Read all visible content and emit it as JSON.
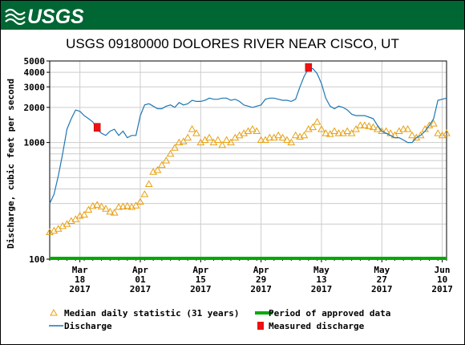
{
  "header": {
    "logo_text": "USGS",
    "brand_color": "#006633"
  },
  "chart_data": {
    "type": "line",
    "title": "USGS 09180000 DOLORES RIVER NEAR CISCO, UT",
    "ylabel": "Discharge, cubic feet per second",
    "xlabel": "",
    "y_scale": "log",
    "ylim": [
      100,
      5000
    ],
    "y_ticks": [
      100,
      1000,
      2000,
      3000,
      4000,
      5000
    ],
    "x_range": [
      "2017-03-11",
      "2017-06-11"
    ],
    "grid": true,
    "legend_position": "bottom",
    "x_ticks": [
      {
        "date": "2017-03-18",
        "label1": "Mar",
        "label2": "18",
        "label3": "2017"
      },
      {
        "date": "2017-04-01",
        "label1": "Apr",
        "label2": "01",
        "label3": "2017"
      },
      {
        "date": "2017-04-15",
        "label1": "Apr",
        "label2": "15",
        "label3": "2017"
      },
      {
        "date": "2017-04-29",
        "label1": "Apr",
        "label2": "29",
        "label3": "2017"
      },
      {
        "date": "2017-05-13",
        "label1": "May",
        "label2": "13",
        "label3": "2017"
      },
      {
        "date": "2017-05-27",
        "label1": "May",
        "label2": "27",
        "label3": "2017"
      },
      {
        "date": "2017-06-10",
        "label1": "Jun",
        "label2": "10",
        "label3": "2017"
      }
    ],
    "series": [
      {
        "name": "Discharge",
        "color": "#1f77b4",
        "points": [
          [
            "2017-03-11",
            300
          ],
          [
            "2017-03-12",
            360
          ],
          [
            "2017-03-13",
            520
          ],
          [
            "2017-03-14",
            800
          ],
          [
            "2017-03-15",
            1300
          ],
          [
            "2017-03-16",
            1600
          ],
          [
            "2017-03-17",
            1900
          ],
          [
            "2017-03-18",
            1850
          ],
          [
            "2017-03-19",
            1700
          ],
          [
            "2017-03-20",
            1600
          ],
          [
            "2017-03-21",
            1500
          ],
          [
            "2017-03-22",
            1300
          ],
          [
            "2017-03-23",
            1200
          ],
          [
            "2017-03-24",
            1150
          ],
          [
            "2017-03-25",
            1250
          ],
          [
            "2017-03-26",
            1300
          ],
          [
            "2017-03-27",
            1150
          ],
          [
            "2017-03-28",
            1250
          ],
          [
            "2017-03-29",
            1100
          ],
          [
            "2017-03-30",
            1150
          ],
          [
            "2017-03-31",
            1150
          ],
          [
            "2017-04-01",
            1700
          ],
          [
            "2017-04-02",
            2100
          ],
          [
            "2017-04-03",
            2150
          ],
          [
            "2017-04-04",
            2050
          ],
          [
            "2017-04-05",
            1950
          ],
          [
            "2017-04-06",
            1950
          ],
          [
            "2017-04-07",
            2050
          ],
          [
            "2017-04-08",
            2100
          ],
          [
            "2017-04-09",
            2000
          ],
          [
            "2017-04-10",
            2200
          ],
          [
            "2017-04-11",
            2100
          ],
          [
            "2017-04-12",
            2150
          ],
          [
            "2017-04-13",
            2300
          ],
          [
            "2017-04-14",
            2250
          ],
          [
            "2017-04-15",
            2250
          ],
          [
            "2017-04-16",
            2300
          ],
          [
            "2017-04-17",
            2400
          ],
          [
            "2017-04-18",
            2350
          ],
          [
            "2017-04-19",
            2350
          ],
          [
            "2017-04-20",
            2400
          ],
          [
            "2017-04-21",
            2400
          ],
          [
            "2017-04-22",
            2300
          ],
          [
            "2017-04-23",
            2350
          ],
          [
            "2017-04-24",
            2250
          ],
          [
            "2017-04-25",
            2100
          ],
          [
            "2017-04-26",
            2050
          ],
          [
            "2017-04-27",
            2000
          ],
          [
            "2017-04-28",
            2050
          ],
          [
            "2017-04-29",
            2100
          ],
          [
            "2017-04-30",
            2350
          ],
          [
            "2017-05-01",
            2400
          ],
          [
            "2017-05-02",
            2400
          ],
          [
            "2017-05-03",
            2350
          ],
          [
            "2017-05-04",
            2300
          ],
          [
            "2017-05-05",
            2300
          ],
          [
            "2017-05-06",
            2250
          ],
          [
            "2017-05-07",
            2350
          ],
          [
            "2017-05-08",
            3000
          ],
          [
            "2017-05-09",
            3700
          ],
          [
            "2017-05-10",
            4300
          ],
          [
            "2017-05-11",
            4300
          ],
          [
            "2017-05-12",
            3900
          ],
          [
            "2017-05-13",
            3200
          ],
          [
            "2017-05-14",
            2400
          ],
          [
            "2017-05-15",
            2050
          ],
          [
            "2017-05-16",
            1950
          ],
          [
            "2017-05-17",
            2050
          ],
          [
            "2017-05-18",
            2000
          ],
          [
            "2017-05-19",
            1900
          ],
          [
            "2017-05-20",
            1750
          ],
          [
            "2017-05-21",
            1700
          ],
          [
            "2017-05-22",
            1700
          ],
          [
            "2017-05-23",
            1700
          ],
          [
            "2017-05-24",
            1650
          ],
          [
            "2017-05-25",
            1600
          ],
          [
            "2017-05-26",
            1400
          ],
          [
            "2017-05-27",
            1250
          ],
          [
            "2017-05-28",
            1200
          ],
          [
            "2017-05-29",
            1150
          ],
          [
            "2017-05-30",
            1100
          ],
          [
            "2017-05-31",
            1100
          ],
          [
            "2017-06-01",
            1050
          ],
          [
            "2017-06-02",
            1000
          ],
          [
            "2017-06-03",
            1000
          ],
          [
            "2017-06-04",
            1100
          ],
          [
            "2017-06-05",
            1150
          ],
          [
            "2017-06-06",
            1250
          ],
          [
            "2017-06-07",
            1400
          ],
          [
            "2017-06-08",
            1600
          ],
          [
            "2017-06-09",
            2300
          ],
          [
            "2017-06-10",
            2350
          ],
          [
            "2017-06-11",
            2400
          ]
        ]
      },
      {
        "name": "Median daily statistic (31 years)",
        "color": "#e8a010",
        "points": [
          [
            "2017-03-11",
            170
          ],
          [
            "2017-03-12",
            175
          ],
          [
            "2017-03-13",
            182
          ],
          [
            "2017-03-14",
            192
          ],
          [
            "2017-03-15",
            200
          ],
          [
            "2017-03-16",
            212
          ],
          [
            "2017-03-17",
            220
          ],
          [
            "2017-03-18",
            235
          ],
          [
            "2017-03-19",
            240
          ],
          [
            "2017-03-20",
            265
          ],
          [
            "2017-03-21",
            285
          ],
          [
            "2017-03-22",
            292
          ],
          [
            "2017-03-23",
            282
          ],
          [
            "2017-03-24",
            270
          ],
          [
            "2017-03-25",
            255
          ],
          [
            "2017-03-26",
            250
          ],
          [
            "2017-03-27",
            280
          ],
          [
            "2017-03-28",
            282
          ],
          [
            "2017-03-29",
            285
          ],
          [
            "2017-03-30",
            280
          ],
          [
            "2017-03-31",
            288
          ],
          [
            "2017-04-01",
            310
          ],
          [
            "2017-04-02",
            360
          ],
          [
            "2017-04-03",
            440
          ],
          [
            "2017-04-04",
            560
          ],
          [
            "2017-04-05",
            580
          ],
          [
            "2017-04-06",
            640
          ],
          [
            "2017-04-07",
            700
          ],
          [
            "2017-04-08",
            800
          ],
          [
            "2017-04-09",
            900
          ],
          [
            "2017-04-10",
            1000
          ],
          [
            "2017-04-11",
            1020
          ],
          [
            "2017-04-12",
            1100
          ],
          [
            "2017-04-13",
            1300
          ],
          [
            "2017-04-14",
            1200
          ],
          [
            "2017-04-15",
            1000
          ],
          [
            "2017-04-16",
            1050
          ],
          [
            "2017-04-17",
            1100
          ],
          [
            "2017-04-18",
            1000
          ],
          [
            "2017-04-19",
            1050
          ],
          [
            "2017-04-20",
            950
          ],
          [
            "2017-04-21",
            1050
          ],
          [
            "2017-04-22",
            1000
          ],
          [
            "2017-04-23",
            1100
          ],
          [
            "2017-04-24",
            1150
          ],
          [
            "2017-04-25",
            1200
          ],
          [
            "2017-04-26",
            1250
          ],
          [
            "2017-04-27",
            1300
          ],
          [
            "2017-04-28",
            1250
          ],
          [
            "2017-04-29",
            1050
          ],
          [
            "2017-04-30",
            1050
          ],
          [
            "2017-05-01",
            1100
          ],
          [
            "2017-05-02",
            1100
          ],
          [
            "2017-05-03",
            1150
          ],
          [
            "2017-05-04",
            1100
          ],
          [
            "2017-05-05",
            1050
          ],
          [
            "2017-05-06",
            1000
          ],
          [
            "2017-05-07",
            1150
          ],
          [
            "2017-05-08",
            1120
          ],
          [
            "2017-05-09",
            1150
          ],
          [
            "2017-05-10",
            1300
          ],
          [
            "2017-05-11",
            1350
          ],
          [
            "2017-05-12",
            1500
          ],
          [
            "2017-05-13",
            1300
          ],
          [
            "2017-05-14",
            1200
          ],
          [
            "2017-05-15",
            1180
          ],
          [
            "2017-05-16",
            1250
          ],
          [
            "2017-05-17",
            1200
          ],
          [
            "2017-05-18",
            1200
          ],
          [
            "2017-05-19",
            1250
          ],
          [
            "2017-05-20",
            1200
          ],
          [
            "2017-05-21",
            1300
          ],
          [
            "2017-05-22",
            1400
          ],
          [
            "2017-05-23",
            1400
          ],
          [
            "2017-05-24",
            1380
          ],
          [
            "2017-05-25",
            1350
          ],
          [
            "2017-05-26",
            1300
          ],
          [
            "2017-05-27",
            1250
          ],
          [
            "2017-05-28",
            1250
          ],
          [
            "2017-05-29",
            1200
          ],
          [
            "2017-05-30",
            1150
          ],
          [
            "2017-05-31",
            1250
          ],
          [
            "2017-06-01",
            1300
          ],
          [
            "2017-06-02",
            1300
          ],
          [
            "2017-06-03",
            1150
          ],
          [
            "2017-06-04",
            1100
          ],
          [
            "2017-06-05",
            1150
          ],
          [
            "2017-06-06",
            1300
          ],
          [
            "2017-06-07",
            1400
          ],
          [
            "2017-06-08",
            1450
          ],
          [
            "2017-06-09",
            1200
          ],
          [
            "2017-06-10",
            1150
          ],
          [
            "2017-06-11",
            1200
          ]
        ]
      }
    ],
    "measurements": [
      {
        "date": "2017-03-22",
        "value": 1350
      },
      {
        "date": "2017-05-10",
        "value": 4400
      }
    ],
    "approved_period": {
      "start": "2017-03-11",
      "end": "2017-06-11",
      "color": "#00aa00"
    },
    "legend": [
      {
        "symbol": "triangle",
        "label": "Median daily statistic (31 years)"
      },
      {
        "symbol": "green-bar",
        "label": "Period of approved data"
      },
      {
        "symbol": "blue-line",
        "label": "Discharge"
      },
      {
        "symbol": "red-marker",
        "label": "Measured discharge"
      }
    ]
  }
}
